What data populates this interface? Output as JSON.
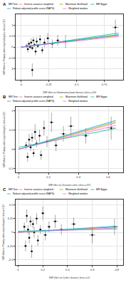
{
  "chart_data": [
    {
      "type": "scatter",
      "panel": "A",
      "x_label": "SNP effect on Inflammatory bowel disease | id:ieu-a-294",
      "y_label": "SNP effect on Primary sclerosing cholangitis | id:ieu-a-1112",
      "xlim": [
        -0.05,
        0.92
      ],
      "xticks": [
        0,
        0.25,
        0.5,
        0.75
      ],
      "ylim": [
        -1.5,
        1.5
      ],
      "yticks": [
        -1,
        -0.5,
        0,
        0.5,
        1
      ],
      "grid": true,
      "legend": "top",
      "legend_title": "MR Test",
      "points": {
        "x": [
          0.05,
          0.06,
          0.07,
          0.08,
          0.09,
          0.1,
          0.11,
          0.12,
          0.13,
          0.14,
          0.15,
          0.17,
          0.19,
          0.21,
          0.24,
          0.28,
          0.33,
          0.4,
          0.85,
          0.1
        ],
        "values": [
          0.05,
          -0.1,
          0.15,
          0.0,
          0.2,
          -0.05,
          0.3,
          0.1,
          -0.2,
          0.25,
          0.05,
          0.35,
          -0.15,
          0.2,
          0.4,
          0.15,
          0.3,
          0.25,
          0.9,
          -1.05
        ],
        "x_err": [
          0.01,
          0.01,
          0.01,
          0.01,
          0.01,
          0.01,
          0.01,
          0.01,
          0.01,
          0.01,
          0.01,
          0.01,
          0.01,
          0.015,
          0.015,
          0.02,
          0.02,
          0.02,
          0.03,
          0.01
        ],
        "y_err": [
          0.1,
          0.15,
          0.12,
          0.1,
          0.2,
          0.1,
          0.15,
          0.1,
          0.18,
          0.2,
          0.1,
          0.2,
          0.15,
          0.2,
          0.25,
          0.2,
          0.25,
          0.3,
          0.35,
          0.3
        ]
      },
      "lines": [
        {
          "name": "Inverse variance weighted",
          "color": "#F8766D",
          "x": [
            0,
            0.88
          ],
          "values": [
            0,
            0.528
          ]
        },
        {
          "name": "Maximum likelihood",
          "color": "#A3A500",
          "x": [
            0,
            0.88
          ],
          "values": [
            0,
            0.546
          ]
        },
        {
          "name": "MR Egger",
          "color": "#00BF7D",
          "x": [
            0,
            0.88
          ],
          "values": [
            -0.02,
            0.64
          ]
        },
        {
          "name": "Robust adjusted profile score (RAPS)",
          "color": "#00B0F6",
          "x": [
            0,
            0.88
          ],
          "values": [
            0,
            0.572
          ]
        },
        {
          "name": "Weighted median",
          "color": "#E76BF3",
          "x": [
            0,
            0.88
          ],
          "values": [
            0,
            0.484
          ]
        }
      ]
    },
    {
      "type": "scatter",
      "panel": "B",
      "x_label": "SNP effect on Ulcerative colitis | id:ieu-a-970",
      "y_label": "SNP effect on Primary sclerosing cholangitis | id:ieu-a-1112",
      "xlim": [
        -0.02,
        0.7
      ],
      "xticks": [
        0,
        0.2,
        0.4,
        0.6
      ],
      "ylim": [
        -0.6,
        1.1
      ],
      "yticks": [
        -0.5,
        0,
        0.5,
        1
      ],
      "grid": true,
      "legend": "top",
      "legend_title": "MR Test",
      "points": {
        "x": [
          0.05,
          0.06,
          0.07,
          0.08,
          0.09,
          0.1,
          0.11,
          0.12,
          0.14,
          0.15,
          0.17,
          0.19,
          0.22,
          0.25,
          0.3,
          0.35,
          0.45,
          0.62
        ],
        "values": [
          0.1,
          -0.2,
          0.25,
          0.05,
          0.3,
          -0.1,
          0.45,
          0.15,
          0.35,
          -0.15,
          0.55,
          0.2,
          0.7,
          0.1,
          0.4,
          0.6,
          0.35,
          0.55
        ],
        "x_err": [
          0.01,
          0.01,
          0.01,
          0.01,
          0.01,
          0.01,
          0.01,
          0.01,
          0.01,
          0.01,
          0.01,
          0.01,
          0.015,
          0.015,
          0.02,
          0.02,
          0.02,
          0.03
        ],
        "y_err": [
          0.1,
          0.12,
          0.15,
          0.1,
          0.12,
          0.1,
          0.2,
          0.1,
          0.15,
          0.12,
          0.2,
          0.15,
          0.25,
          0.15,
          0.2,
          0.25,
          0.2,
          0.3
        ]
      },
      "lines": [
        {
          "name": "Inverse variance weighted",
          "color": "#F8766D",
          "x": [
            0,
            0.65
          ],
          "values": [
            0,
            0.68
          ]
        },
        {
          "name": "Maximum likelihood",
          "color": "#A3A500",
          "x": [
            0,
            0.65
          ],
          "values": [
            0,
            0.715
          ]
        },
        {
          "name": "MR Egger",
          "color": "#00BF7D",
          "x": [
            0,
            0.65
          ],
          "values": [
            0.05,
            0.54
          ]
        },
        {
          "name": "Robust adjusted profile score (RAPS)",
          "color": "#00B0F6",
          "x": [
            0,
            0.65
          ],
          "values": [
            0,
            0.75
          ]
        },
        {
          "name": "Weighted median",
          "color": "#E76BF3",
          "x": [
            0,
            0.65
          ],
          "values": [
            0,
            0.62
          ]
        }
      ]
    },
    {
      "type": "scatter",
      "panel": "C",
      "x_label": "SNP effect on Crohn's disease | id:ieu-a-12",
      "y_label": "SNP effect on Primary sclerosing cholangitis | id:ieu-a-1112",
      "xlim": [
        -0.02,
        0.85
      ],
      "xticks": [
        0,
        0.2,
        0.4,
        0.6,
        0.8
      ],
      "ylim": [
        -0.6,
        0.6
      ],
      "yticks": [
        -0.5,
        -0.25,
        0,
        0.25,
        0.5
      ],
      "grid": true,
      "legend": "top",
      "legend_title": "MR Test",
      "points": {
        "x": [
          0.05,
          0.06,
          0.07,
          0.08,
          0.09,
          0.1,
          0.11,
          0.12,
          0.13,
          0.15,
          0.16,
          0.18,
          0.2,
          0.22,
          0.25,
          0.3,
          0.35,
          0.45,
          0.6,
          0.78
        ],
        "values": [
          0.1,
          -0.25,
          0.3,
          0.05,
          -0.1,
          0.2,
          -0.35,
          0.15,
          0.0,
          0.25,
          -0.15,
          0.05,
          0.35,
          -0.05,
          0.1,
          0.2,
          0.05,
          0.15,
          -0.05,
          0.1
        ],
        "x_err": [
          0.01,
          0.01,
          0.01,
          0.01,
          0.01,
          0.01,
          0.01,
          0.01,
          0.01,
          0.01,
          0.01,
          0.01,
          0.015,
          0.015,
          0.015,
          0.02,
          0.02,
          0.02,
          0.025,
          0.03
        ],
        "y_err": [
          0.08,
          0.1,
          0.12,
          0.08,
          0.1,
          0.1,
          0.12,
          0.08,
          0.1,
          0.1,
          0.1,
          0.08,
          0.12,
          0.1,
          0.1,
          0.12,
          0.1,
          0.12,
          0.15,
          0.15
        ]
      },
      "lines": [
        {
          "name": "Inverse variance weighted",
          "color": "#F8766D",
          "x": [
            0,
            0.8
          ],
          "values": [
            0,
            0.096
          ]
        },
        {
          "name": "Maximum likelihood",
          "color": "#A3A500",
          "x": [
            0,
            0.8
          ],
          "values": [
            0,
            0.104
          ]
        },
        {
          "name": "MR Egger",
          "color": "#00BF7D",
          "x": [
            0,
            0.8
          ],
          "values": [
            0.02,
            0.06
          ]
        },
        {
          "name": "Robust adjusted profile score (RAPS)",
          "color": "#00B0F6",
          "x": [
            0,
            0.8
          ],
          "values": [
            0,
            0.112
          ]
        },
        {
          "name": "Weighted median",
          "color": "#E76BF3",
          "x": [
            0,
            0.8
          ],
          "values": [
            0,
            0.08
          ]
        }
      ]
    }
  ]
}
